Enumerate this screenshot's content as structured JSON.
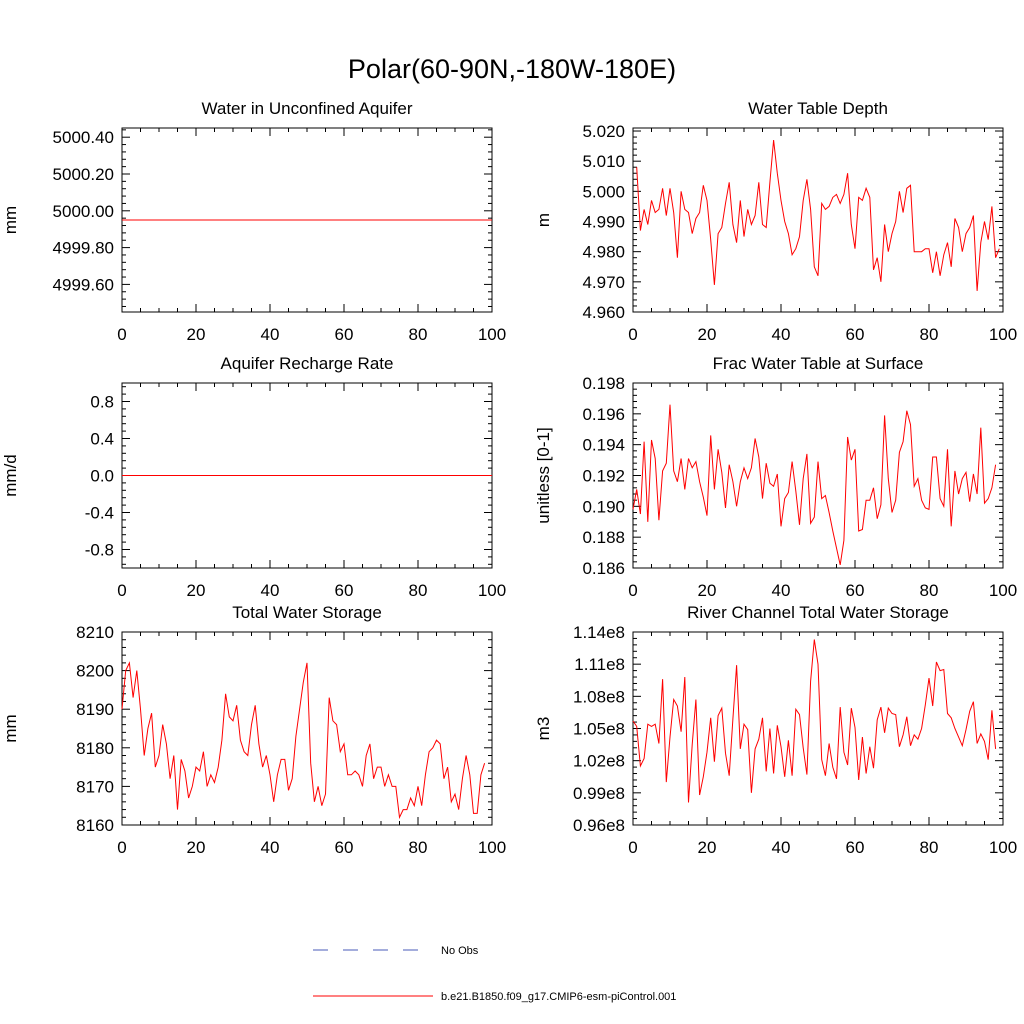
{
  "figure": {
    "title": "Polar(60-90N,-180W-180E)",
    "series_color": "#ff0000",
    "obs_color": "#4a5bb8"
  },
  "legend": {
    "obs_label": "No Obs",
    "model_label": "b.e21.B1850.f09_g17.CMIP6-esm-piControl.001"
  },
  "chart_data": [
    {
      "type": "line",
      "title": "Water in Unconfined Aquifer",
      "xlabel": "",
      "ylabel": "mm",
      "xlim": [
        0,
        100
      ],
      "ylim": [
        4999.45,
        5000.45
      ],
      "yticks": [
        4999.6,
        4999.8,
        5000.0,
        5000.2,
        5000.4
      ],
      "yticklabels": [
        "4999.60",
        "4999.80",
        "5000.00",
        "5000.20",
        "5000.40"
      ],
      "xticks": [
        0,
        20,
        40,
        60,
        80,
        100
      ],
      "xticklabels": [
        "0",
        "20",
        "40",
        "60",
        "80",
        "100"
      ],
      "series": [
        {
          "name": "b.e21.B1850.f09_g17.CMIP6-esm-piControl.001",
          "x_start": 0,
          "values": [
            4999.95,
            4999.95
          ]
        }
      ]
    },
    {
      "type": "line",
      "title": "Water Table Depth",
      "xlabel": "",
      "ylabel": "m",
      "xlim": [
        0,
        100
      ],
      "ylim": [
        4.96,
        5.021
      ],
      "yticks": [
        4.96,
        4.97,
        4.98,
        4.99,
        5.0,
        5.01,
        5.02
      ],
      "yticklabels": [
        "4.960",
        "4.970",
        "4.980",
        "4.990",
        "5.000",
        "5.010",
        "5.020"
      ],
      "xticks": [
        0,
        20,
        40,
        60,
        80,
        100
      ],
      "xticklabels": [
        "0",
        "20",
        "40",
        "60",
        "80",
        "100"
      ],
      "series": [
        {
          "name": "b.e21.B1850.f09_g17.CMIP6-esm-piControl.001",
          "x_start": 1,
          "values": [
            5.008,
            4.987,
            4.994,
            4.989,
            4.997,
            4.993,
            4.994,
            5.001,
            4.992,
            5.001,
            4.993,
            4.978,
            5.0,
            4.994,
            4.993,
            4.986,
            4.991,
            4.993,
            5.002,
            4.997,
            4.984,
            4.969,
            4.986,
            4.988,
            4.996,
            5.003,
            4.989,
            4.983,
            4.997,
            4.985,
            4.994,
            4.989,
            4.992,
            5.003,
            4.989,
            4.988,
            5.003,
            5.017,
            5.006,
            4.997,
            4.99,
            4.986,
            4.979,
            4.981,
            4.985,
            4.997,
            5.004,
            4.994,
            4.975,
            4.972,
            4.996,
            4.994,
            4.995,
            4.998,
            4.999,
            4.996,
            4.999,
            5.006,
            4.989,
            4.981,
            4.998,
            4.997,
            5.001,
            4.998,
            4.974,
            4.978,
            4.97,
            4.989,
            4.98,
            4.986,
            4.99,
            5.0,
            4.993,
            5.001,
            5.002,
            4.98,
            4.98,
            4.98,
            4.981,
            4.981,
            4.973,
            4.98,
            4.972,
            4.979,
            4.983,
            4.975,
            4.991,
            4.988,
            4.98,
            4.986,
            4.988,
            4.992,
            4.967,
            4.983,
            4.99,
            4.984,
            4.995,
            4.978,
            4.981
          ]
        }
      ]
    },
    {
      "type": "line",
      "title": "Aquifer Recharge Rate",
      "xlabel": "",
      "ylabel": "mm/d",
      "xlim": [
        0,
        100
      ],
      "ylim": [
        -1.0,
        1.0
      ],
      "yticks": [
        -0.8,
        -0.4,
        0.0,
        0.4,
        0.8
      ],
      "yticklabels": [
        "-0.8",
        "-0.4",
        "0.0",
        "0.4",
        "0.8"
      ],
      "xticks": [
        0,
        20,
        40,
        60,
        80,
        100
      ],
      "xticklabels": [
        "0",
        "20",
        "40",
        "60",
        "80",
        "100"
      ],
      "series": [
        {
          "name": "b.e21.B1850.f09_g17.CMIP6-esm-piControl.001",
          "x_start": 0,
          "values": [
            0.0,
            0.0
          ]
        }
      ]
    },
    {
      "type": "line",
      "title": "Frac Water Table at Surface",
      "xlabel": "",
      "ylabel": "unitless [0-1]",
      "xlim": [
        0,
        100
      ],
      "ylim": [
        0.186,
        0.198
      ],
      "yticks": [
        0.186,
        0.188,
        0.19,
        0.192,
        0.194,
        0.196,
        0.198
      ],
      "yticklabels": [
        "0.186",
        "0.188",
        "0.190",
        "0.192",
        "0.194",
        "0.196",
        "0.198"
      ],
      "xticks": [
        0,
        20,
        40,
        60,
        80,
        100
      ],
      "xticklabels": [
        "0",
        "20",
        "40",
        "60",
        "80",
        "100"
      ],
      "series": [
        {
          "name": "b.e21.B1850.f09_g17.CMIP6-esm-piControl.001",
          "x_start": 0,
          "values": [
            0.1898,
            0.1911,
            0.1895,
            0.1942,
            0.189,
            0.1943,
            0.1931,
            0.1891,
            0.1923,
            0.1928,
            0.1966,
            0.1923,
            0.1916,
            0.1931,
            0.1911,
            0.1931,
            0.1925,
            0.1929,
            0.1916,
            0.1906,
            0.1894,
            0.1946,
            0.1911,
            0.1937,
            0.1922,
            0.1899,
            0.1927,
            0.1916,
            0.19,
            0.1916,
            0.1925,
            0.1918,
            0.1925,
            0.1944,
            0.1932,
            0.1905,
            0.1928,
            0.1915,
            0.1913,
            0.1921,
            0.1887,
            0.1905,
            0.1909,
            0.1929,
            0.191,
            0.1888,
            0.1918,
            0.1934,
            0.1889,
            0.1893,
            0.1929,
            0.1905,
            0.1907,
            0.1896,
            0.1884,
            0.1873,
            0.1862,
            0.1878,
            0.1945,
            0.193,
            0.1937,
            0.1884,
            0.1885,
            0.1904,
            0.1904,
            0.1912,
            0.1892,
            0.1901,
            0.1959,
            0.1918,
            0.1896,
            0.1904,
            0.1935,
            0.1942,
            0.1962,
            0.1953,
            0.1913,
            0.1918,
            0.1904,
            0.1899,
            0.1898,
            0.1932,
            0.1932,
            0.1905,
            0.19,
            0.1937,
            0.1887,
            0.1923,
            0.1908,
            0.1918,
            0.1922,
            0.1903,
            0.1921,
            0.1908,
            0.1951,
            0.1902,
            0.1905,
            0.1912,
            0.1927
          ]
        }
      ]
    },
    {
      "type": "line",
      "title": "Total Water Storage",
      "xlabel": "",
      "ylabel": "mm",
      "xlim": [
        0,
        100
      ],
      "ylim": [
        8160,
        8210
      ],
      "yticks": [
        8160,
        8170,
        8180,
        8190,
        8200,
        8210
      ],
      "yticklabels": [
        "8160",
        "8170",
        "8180",
        "8190",
        "8200",
        "8210"
      ],
      "xticks": [
        0,
        20,
        40,
        60,
        80,
        100
      ],
      "xticklabels": [
        "0",
        "20",
        "40",
        "60",
        "80",
        "100"
      ],
      "series": [
        {
          "name": "b.e21.B1850.f09_g17.CMIP6-esm-piControl.001",
          "x_start": 0,
          "values": [
            8190,
            8200,
            8202,
            8193,
            8200,
            8190,
            8178,
            8185,
            8189,
            8175,
            8178,
            8186,
            8181,
            8172,
            8178,
            8164,
            8177,
            8174,
            8167,
            8170,
            8175,
            8174,
            8179,
            8170,
            8173,
            8171,
            8175,
            8182,
            8194,
            8188,
            8187,
            8191,
            8182,
            8179,
            8178,
            8186,
            8191,
            8181,
            8175,
            8178,
            8173,
            8166,
            8173,
            8177,
            8177,
            8169,
            8172,
            8183,
            8190,
            8197,
            8202,
            8176,
            8166,
            8170,
            8165,
            8168,
            8193,
            8187,
            8186,
            8179,
            8181,
            8173,
            8173,
            8174,
            8173,
            8170,
            8178,
            8181,
            8172,
            8175,
            8175,
            8170,
            8173,
            8170,
            8170,
            8162,
            8164,
            8164,
            8167,
            8165,
            8170,
            8165,
            8173,
            8179,
            8180,
            8182,
            8181,
            8172,
            8175,
            8166,
            8168,
            8164,
            8172,
            8178,
            8173,
            8163,
            8163,
            8173,
            8176
          ]
        }
      ]
    },
    {
      "type": "line",
      "title": "River Channel Total Water Storage",
      "xlabel": "",
      "ylabel": "m3",
      "xlim": [
        0,
        100
      ],
      "ylim": [
        96000000.0,
        114000000.0
      ],
      "yticks": [
        96000000.0,
        99000000.0,
        102000000.0,
        105000000.0,
        108000000.0,
        111000000.0,
        114000000.0
      ],
      "yticklabels": [
        "0.96e8",
        "0.99e8",
        "1.02e8",
        "1.05e8",
        "1.08e8",
        "1.11e8",
        "1.14e8"
      ],
      "xticks": [
        0,
        20,
        40,
        60,
        80,
        100
      ],
      "xticklabels": [
        "0",
        "20",
        "40",
        "60",
        "80",
        "100"
      ],
      "series": [
        {
          "name": "b.e21.B1850.f09_g17.CMIP6-esm-piControl.001",
          "x_start": 0,
          "values": [
            105700000.0,
            105200000.0,
            101500000.0,
            102200000.0,
            105400000.0,
            105200000.0,
            105400000.0,
            103600000.0,
            109600000.0,
            100000000.0,
            104200000.0,
            107700000.0,
            107100000.0,
            104700000.0,
            109800000.0,
            98100000.0,
            103500000.0,
            107700000.0,
            98800000.0,
            100500000.0,
            102800000.0,
            106000000.0,
            101900000.0,
            106200000.0,
            106900000.0,
            102700000.0,
            100600000.0,
            105900000.0,
            110900000.0,
            103100000.0,
            105400000.0,
            104900000.0,
            99000000.0,
            103100000.0,
            104000000.0,
            106000000.0,
            101000000.0,
            105000000.0,
            100800000.0,
            105300000.0,
            103300000.0,
            100500000.0,
            103900000.0,
            100600000.0,
            106800000.0,
            106300000.0,
            103200000.0,
            100700000.0,
            109400000.0,
            113300000.0,
            111000000.0,
            102100000.0,
            100600000.0,
            103600000.0,
            101400000.0,
            100300000.0,
            107000000.0,
            102800000.0,
            101600000.0,
            106900000.0,
            105100000.0,
            100200000.0,
            104200000.0,
            100800000.0,
            103300000.0,
            101300000.0,
            105800000.0,
            107000000.0,
            104600000.0,
            106900000.0,
            106400000.0,
            106300000.0,
            103300000.0,
            104400000.0,
            106100000.0,
            103400000.0,
            104400000.0,
            104000000.0,
            105000000.0,
            107200000.0,
            109700000.0,
            107100000.0,
            111200000.0,
            110400000.0,
            110500000.0,
            106400000.0,
            106000000.0,
            105000000.0,
            104200000.0,
            103400000.0,
            104900000.0,
            106600000.0,
            107500000.0,
            103600000.0,
            104500000.0,
            103800000.0,
            102100000.0,
            106700000.0,
            103100000.0
          ]
        }
      ]
    }
  ]
}
